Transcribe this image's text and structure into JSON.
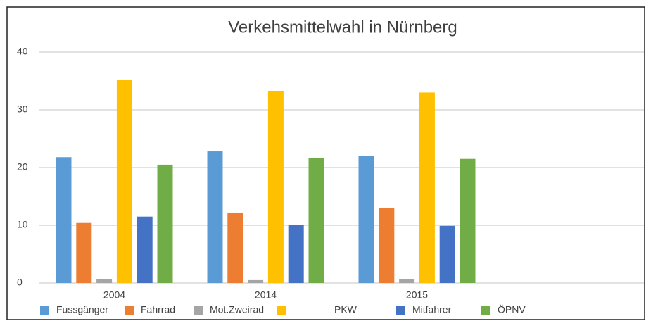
{
  "chart_data": {
    "type": "bar",
    "title": "Verkehsmittelwahl in Nürnberg",
    "categories": [
      "2004",
      "2014",
      "2015",
      null
    ],
    "series": [
      {
        "name": "Fussgänger",
        "color": "#5b9bd5",
        "values": [
          21.8,
          22.8,
          22.0,
          null
        ]
      },
      {
        "name": "Fahrrad",
        "color": "#ed7d31",
        "values": [
          10.4,
          12.2,
          13.0,
          null
        ]
      },
      {
        "name": "Mot.Zweirad",
        "color": "#a5a5a5",
        "values": [
          0.7,
          0.5,
          0.7,
          null
        ]
      },
      {
        "name": "PKW",
        "color": "#ffc000",
        "values": [
          35.2,
          33.3,
          33.0,
          null
        ]
      },
      {
        "name": "Mitfahrer",
        "color": "#4472c4",
        "values": [
          11.5,
          10.0,
          9.9,
          null
        ]
      },
      {
        "name": "ÖPNV",
        "color": "#70ad47",
        "values": [
          20.5,
          21.6,
          21.5,
          null
        ]
      }
    ],
    "ylim": [
      0,
      40
    ],
    "yticks": [
      0,
      10,
      20,
      30,
      40
    ],
    "grid": true,
    "legend": "bottom"
  }
}
